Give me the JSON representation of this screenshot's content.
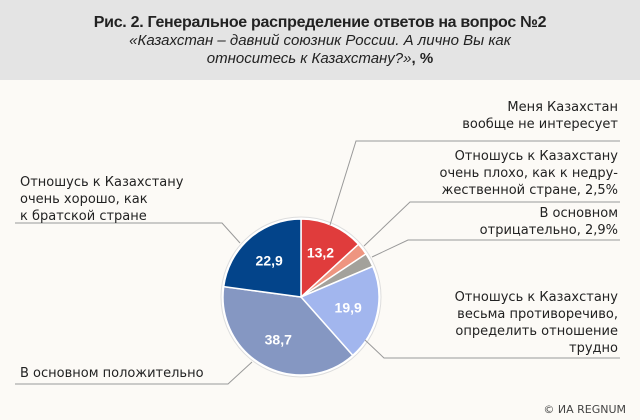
{
  "header": {
    "title": "Рис. 2. Генеральное распределение ответов на вопрос №2",
    "subtitle": "«Казахстан – давний союзник России. А лично Вы как относитесь к Казахстану?»",
    "unit": ", %"
  },
  "chart_data": {
    "type": "pie",
    "title": "Рис. 2. Генеральное распределение ответов на вопрос №2",
    "slices": [
      {
        "label": "Меня Казахстан вообще не интересует",
        "value": 13.2,
        "value_label": "13,2",
        "color": "#e03c3c"
      },
      {
        "label": "Отношусь к Казахстану очень плохо, как к недружественной стране, 2,5%",
        "value": 2.5,
        "value_label": "",
        "color": "#ee9580"
      },
      {
        "label": "В основном отрицательно, 2,9%",
        "value": 2.9,
        "value_label": "",
        "color": "#a3a19b"
      },
      {
        "label": "Отношусь к Казахстану весьма противоречиво, определить отношение трудно",
        "value": 19.9,
        "value_label": "19,9",
        "color": "#a2b6ee"
      },
      {
        "label": "В основном положительно",
        "value": 38.7,
        "value_label": "38,7",
        "color": "#8597c2"
      },
      {
        "label": "Отношусь к Казахстану очень хорошо, как к братской стране",
        "value": 22.9,
        "value_label": "22,9",
        "color": "#03448a"
      }
    ]
  },
  "labels": {
    "l0": [
      "Меня Казахстан",
      "вообще не интересует"
    ],
    "l1": [
      "Отношусь к Казахстану",
      "очень плохо, как к недру-",
      "жественной стране, 2,5%"
    ],
    "l2": [
      "В основном",
      "отрицательно, 2,9%"
    ],
    "l3": [
      "Отношусь к Казахстану",
      "весьма противоречиво,",
      "определить отношение",
      "трудно"
    ],
    "l4": [
      "В основном положительно"
    ],
    "l5": [
      "Отношусь к Казахстану",
      "очень хорошо, как",
      "к братской стране"
    ]
  },
  "footer": "© ИА REGNUM"
}
